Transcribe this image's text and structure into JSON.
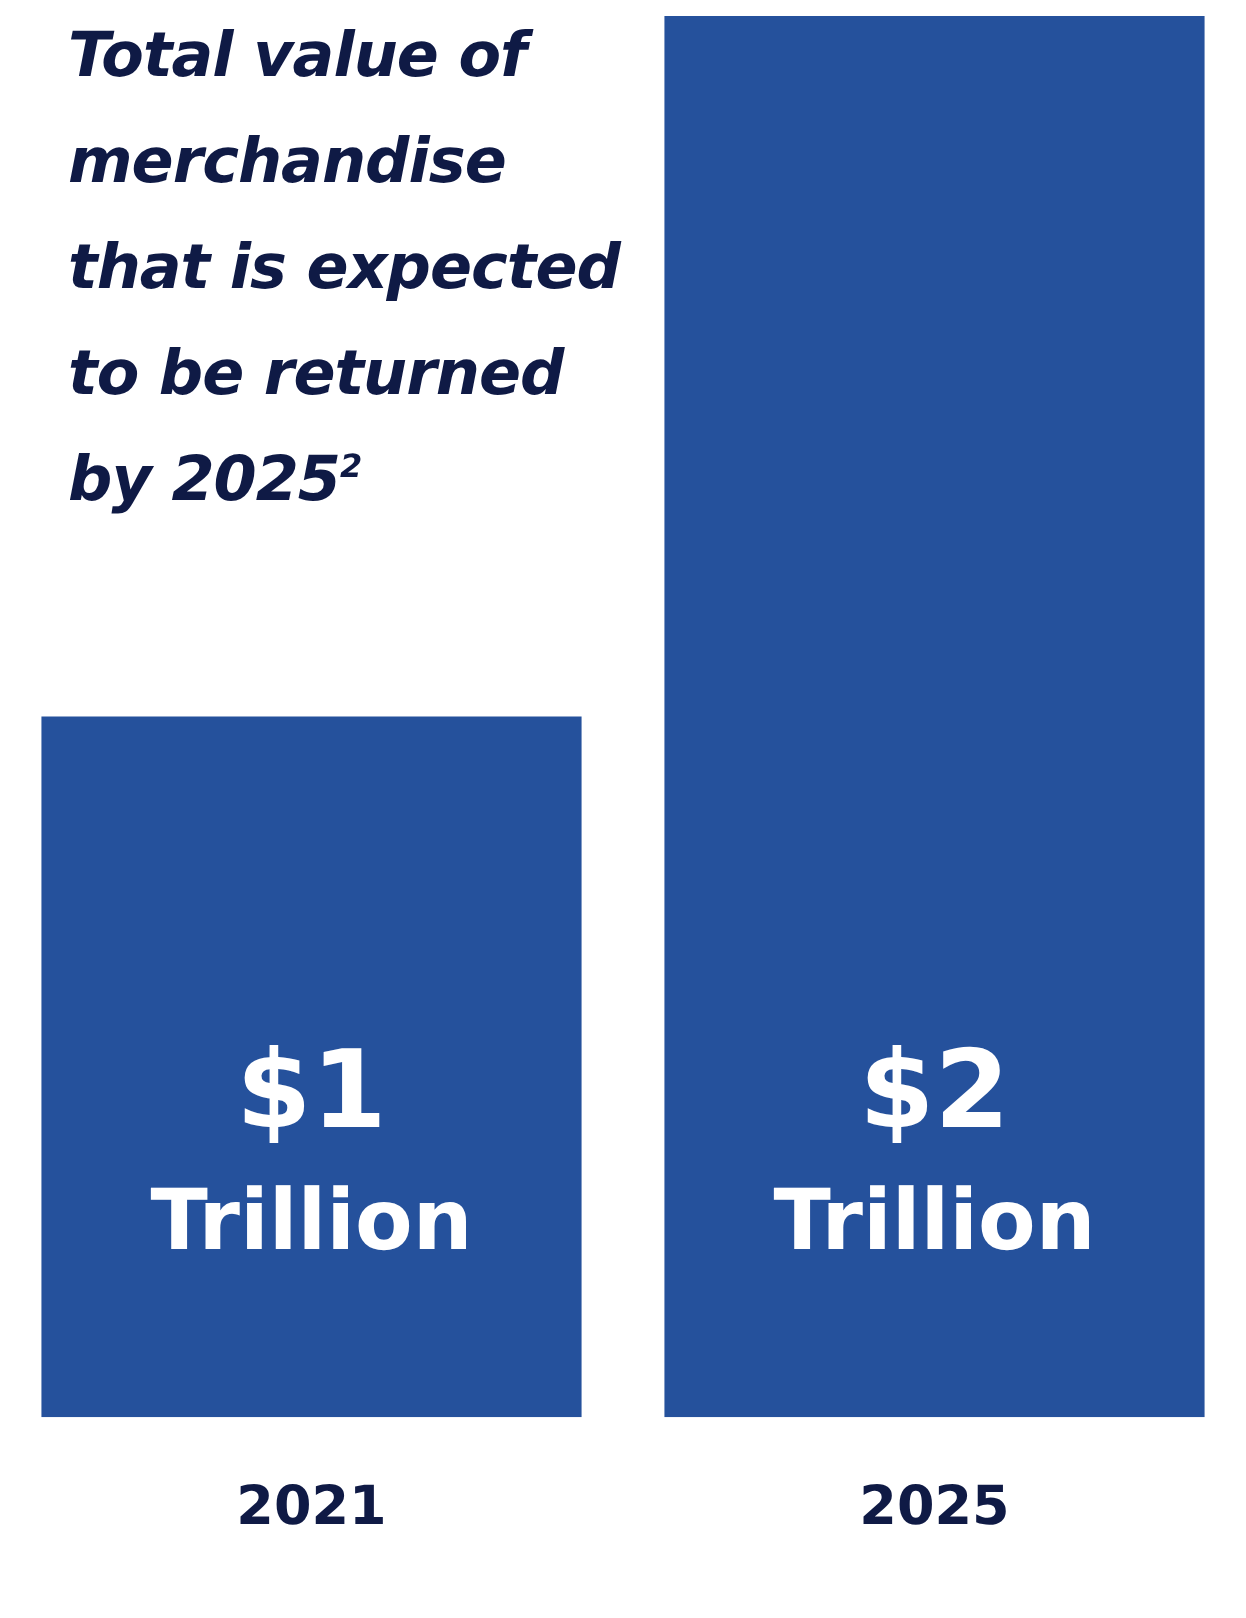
{
  "chart_data": {
    "type": "bar",
    "title": "Total value of merchandise that is expected to be returned by 2025$^{2}$",
    "categories": [
      "2021",
      "2025"
    ],
    "values": [
      1,
      2
    ],
    "value_labels": [
      "$1 Trillion",
      "$2 Trillion"
    ],
    "color": "#25519c",
    "grid": false,
    "legend": false
  }
}
